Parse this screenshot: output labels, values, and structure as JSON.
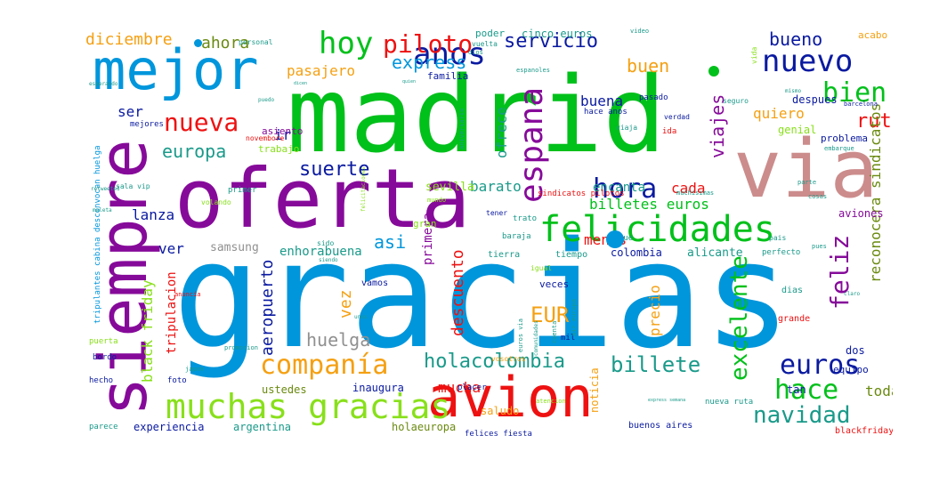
{
  "colors": {
    "green": "#00c01a",
    "blue": "#0096dc",
    "purple": "#860a9a",
    "pink": "#cc8c8c",
    "red": "#ee1111",
    "navy": "#0a1aa0",
    "lime": "#88e01a",
    "orange": "#f5a012",
    "teal": "#1a9a8a",
    "gray": "#909090",
    "olive": "#6a8a10"
  },
  "words": [
    {
      "text": "gracias",
      "color": "blue"
    },
    {
      "text": "madrid",
      "color": "green"
    },
    {
      "text": "oferta",
      "color": "purple"
    },
    {
      "text": "via",
      "color": "pink"
    },
    {
      "text": "siempre",
      "color": "purple"
    },
    {
      "text": "mejor",
      "color": "blue"
    },
    {
      "text": "avion",
      "color": "red"
    },
    {
      "text": "felicidades",
      "color": "green"
    },
    {
      "text": "muchas gracias",
      "color": "lime"
    },
    {
      "text": "companía",
      "color": "orange"
    },
    {
      "text": "espana",
      "color": "purple"
    },
    {
      "text": "hoy",
      "color": "green"
    },
    {
      "text": "anos",
      "color": "navy"
    },
    {
      "text": "nuevo",
      "color": "navy"
    },
    {
      "text": "nueva",
      "color": "red"
    },
    {
      "text": "hora",
      "color": "navy"
    },
    {
      "text": "hace",
      "color": "green"
    },
    {
      "text": "euros",
      "color": "navy"
    },
    {
      "text": "bien",
      "color": "green"
    },
    {
      "text": "piloto",
      "color": "red"
    },
    {
      "text": "servicio",
      "color": "navy"
    },
    {
      "text": "navidad",
      "color": "teal"
    },
    {
      "text": "holacolombia",
      "color": "teal"
    },
    {
      "text": "billete",
      "color": "teal"
    },
    {
      "text": "excelente",
      "color": "green"
    },
    {
      "text": "feliz",
      "color": "purple"
    },
    {
      "text": "EUR",
      "color": "orange"
    },
    {
      "text": "suerte",
      "color": "navy"
    },
    {
      "text": "europa",
      "color": "teal"
    },
    {
      "text": "viajes",
      "color": "purple"
    },
    {
      "text": "express",
      "color": "blue"
    },
    {
      "text": "huelga",
      "color": "gray"
    },
    {
      "text": "aeropuerto",
      "color": "navy"
    },
    {
      "text": "descuento",
      "color": "red"
    },
    {
      "text": "ruta",
      "color": "red"
    },
    {
      "text": "buen",
      "color": "orange"
    },
    {
      "text": "bueno",
      "color": "navy"
    },
    {
      "text": "vez",
      "color": "orange"
    },
    {
      "text": "asi",
      "color": "blue"
    },
    {
      "text": "diciembre",
      "color": "orange"
    },
    {
      "text": "ahora",
      "color": "olive"
    },
    {
      "text": "pasajero",
      "color": "orange"
    },
    {
      "text": "quiero",
      "color": "orange"
    },
    {
      "text": "ofrece",
      "color": "teal"
    },
    {
      "text": "billetes euros",
      "color": "green"
    },
    {
      "text": "reconocera sindicatos",
      "color": "olive"
    },
    {
      "text": "black friday",
      "color": "lime"
    },
    {
      "text": "precio",
      "color": "orange"
    },
    {
      "text": "mucha",
      "color": "red"
    },
    {
      "text": "toda",
      "color": "olive"
    },
    {
      "text": "ser",
      "color": "navy"
    },
    {
      "text": "buena",
      "color": "navy"
    },
    {
      "text": "barato",
      "color": "teal"
    },
    {
      "text": "lanza",
      "color": "navy"
    },
    {
      "text": "cada",
      "color": "red"
    },
    {
      "text": "encanta",
      "color": "teal"
    },
    {
      "text": "menos",
      "color": "red"
    },
    {
      "text": "ver",
      "color": "navy"
    },
    {
      "text": "ir",
      "color": "navy"
    },
    {
      "text": "primera",
      "color": "purple"
    },
    {
      "text": "tripulacion",
      "color": "red"
    },
    {
      "text": "sevilla",
      "color": "lime"
    },
    {
      "text": "samsung",
      "color": "gray"
    },
    {
      "text": "enhorabuena",
      "color": "teal"
    },
    {
      "text": "colombia",
      "color": "navy"
    },
    {
      "text": "alicante",
      "color": "teal"
    },
    {
      "text": "experiencia",
      "color": "navy"
    },
    {
      "text": "argentina",
      "color": "teal"
    },
    {
      "text": "inaugura",
      "color": "navy"
    },
    {
      "text": "ustedes",
      "color": "olive"
    },
    {
      "text": "saludo",
      "color": "orange"
    },
    {
      "text": "holaeuropa",
      "color": "olive"
    },
    {
      "text": "felices fiesta",
      "color": "navy"
    },
    {
      "text": "buenos aires",
      "color": "navy"
    },
    {
      "text": "blackfriday",
      "color": "red"
    },
    {
      "text": "noticia",
      "color": "orange"
    },
    {
      "text": "dos",
      "color": "navy"
    },
    {
      "text": "tan",
      "color": "navy"
    },
    {
      "text": "equipo",
      "color": "navy"
    },
    {
      "text": "grande",
      "color": "red"
    },
    {
      "text": "aviones",
      "color": "purple"
    },
    {
      "text": "genial",
      "color": "lime"
    },
    {
      "text": "problema",
      "color": "navy"
    },
    {
      "text": "despues",
      "color": "navy"
    },
    {
      "text": "acabo",
      "color": "orange"
    },
    {
      "text": "poder",
      "color": "teal"
    },
    {
      "text": "cinco euros",
      "color": "teal"
    },
    {
      "text": "familia",
      "color": "navy"
    },
    {
      "text": "trabajo",
      "color": "lime"
    },
    {
      "text": "asiento",
      "color": "purple"
    },
    {
      "text": "veces",
      "color": "navy"
    },
    {
      "text": "vamos",
      "color": "navy"
    },
    {
      "text": "dias",
      "color": "teal"
    },
    {
      "text": "perfecto",
      "color": "teal"
    },
    {
      "text": "tierra",
      "color": "teal"
    },
    {
      "text": "tiempo",
      "color": "teal"
    },
    {
      "text": "mil",
      "color": "navy"
    },
    {
      "text": "puerta",
      "color": "lime"
    },
    {
      "text": "bordo",
      "color": "navy"
    },
    {
      "text": "hecho",
      "color": "navy"
    },
    {
      "text": "foto",
      "color": "navy"
    },
    {
      "text": "parece",
      "color": "teal"
    },
    {
      "text": "placer",
      "color": "navy"
    },
    {
      "text": "atencion",
      "color": "lime"
    },
    {
      "text": "nueva ruta",
      "color": "teal"
    },
    {
      "text": "mundo",
      "color": "lime"
    },
    {
      "text": "gran",
      "color": "lime"
    },
    {
      "text": "trato",
      "color": "teal"
    },
    {
      "text": "baraja",
      "color": "teal"
    },
    {
      "text": "sigue",
      "color": "teal"
    },
    {
      "text": "pais",
      "color": "teal"
    },
    {
      "text": "mejores",
      "color": "navy"
    },
    {
      "text": "primer",
      "color": "teal"
    },
    {
      "text": "volando",
      "color": "lime"
    },
    {
      "text": "novembore",
      "color": "red"
    },
    {
      "text": "verdad",
      "color": "navy"
    },
    {
      "text": "ida",
      "color": "red"
    },
    {
      "text": "viaja",
      "color": "teal"
    },
    {
      "text": "hace anos",
      "color": "navy"
    },
    {
      "text": "pasado",
      "color": "navy"
    },
    {
      "text": "seguro",
      "color": "teal"
    },
    {
      "text": "parte",
      "color": "teal"
    },
    {
      "text": "cosas",
      "color": "teal"
    },
    {
      "text": "embarque",
      "color": "teal"
    },
    {
      "text": "barcelona",
      "color": "navy"
    },
    {
      "text": "sindicatos pilotos",
      "color": "red"
    },
    {
      "text": "personal",
      "color": "teal"
    },
    {
      "text": "vuelta",
      "color": "teal"
    },
    {
      "text": "dios",
      "color": "teal"
    },
    {
      "text": "sala vip",
      "color": "teal"
    },
    {
      "text": "mismo",
      "color": "teal"
    },
    {
      "text": "claro",
      "color": "teal"
    },
    {
      "text": "vida",
      "color": "lime"
    },
    {
      "text": "video",
      "color": "teal"
    },
    {
      "text": "tener",
      "color": "navy"
    },
    {
      "text": "vosotros",
      "color": "orange"
    },
    {
      "text": "muchisimas",
      "color": "teal"
    },
    {
      "text": "pues",
      "color": "teal"
    },
    {
      "text": "igual",
      "color": "lime"
    },
    {
      "text": "sido",
      "color": "teal"
    },
    {
      "text": "promocion",
      "color": "teal"
    },
    {
      "text": "japon",
      "color": "teal"
    },
    {
      "text": "espanoles",
      "color": "teal"
    },
    {
      "text": "tripulantes cabina desconvocan huelga",
      "color": "blue"
    },
    {
      "text": "anuncia",
      "color": "red"
    },
    {
      "text": "retweeted",
      "color": "teal"
    },
    {
      "text": "maleta",
      "color": "teal"
    },
    {
      "text": "esperando",
      "color": "teal"
    },
    {
      "text": "puedo",
      "color": "teal"
    },
    {
      "text": "aniversario",
      "color": "teal"
    },
    {
      "text": "air europa",
      "color": "teal"
    },
    {
      "text": "euros via",
      "color": "teal"
    },
    {
      "text": "comunidades",
      "color": "teal"
    },
    {
      "text": "cuenta",
      "color": "teal"
    },
    {
      "text": "siendo",
      "color": "teal"
    },
    {
      "text": "felicitaciones",
      "color": "lime"
    },
    {
      "text": "express semana",
      "color": "teal"
    },
    {
      "text": "unos",
      "color": "teal"
    },
    {
      "text": "dicen",
      "color": "teal"
    },
    {
      "text": "quien",
      "color": "teal"
    }
  ]
}
